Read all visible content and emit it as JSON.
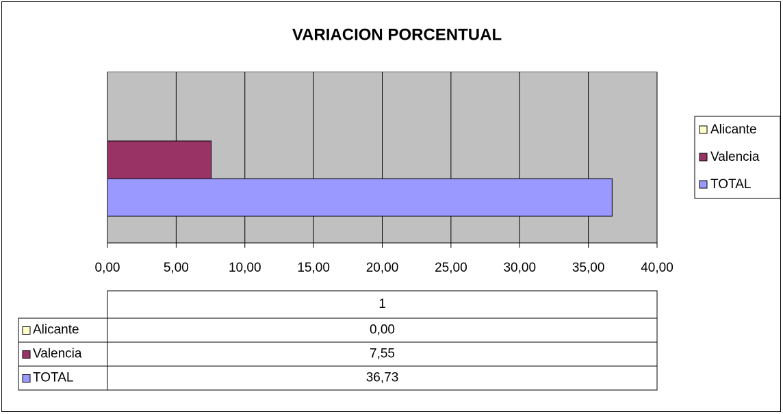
{
  "chart_data": {
    "type": "bar",
    "orientation": "horizontal",
    "title": "VARIACION PORCENTUAL",
    "categories": [
      "1"
    ],
    "series": [
      {
        "name": "Alicante",
        "color": "#ffffcc",
        "values": [
          0
        ],
        "value_labels": [
          "0,00"
        ]
      },
      {
        "name": "Valencia",
        "color": "#993366",
        "values": [
          7.55
        ],
        "value_labels": [
          "7,55"
        ]
      },
      {
        "name": "TOTAL",
        "color": "#9999ff",
        "values": [
          36.73
        ],
        "value_labels": [
          "36,73"
        ]
      }
    ],
    "xlim": [
      0,
      40
    ],
    "xticks": [
      {
        "value": 0,
        "label": "0,00"
      },
      {
        "value": 5,
        "label": "5,00"
      },
      {
        "value": 10,
        "label": "10,00"
      },
      {
        "value": 15,
        "label": "15,00"
      },
      {
        "value": 20,
        "label": "20,00"
      },
      {
        "value": 25,
        "label": "25,00"
      },
      {
        "value": 30,
        "label": "30,00"
      },
      {
        "value": 35,
        "label": "35,00"
      },
      {
        "value": 40,
        "label": "40,00"
      }
    ],
    "grid": true,
    "legend": "right",
    "plot_background": "#c0c0c0",
    "data_table": true
  }
}
